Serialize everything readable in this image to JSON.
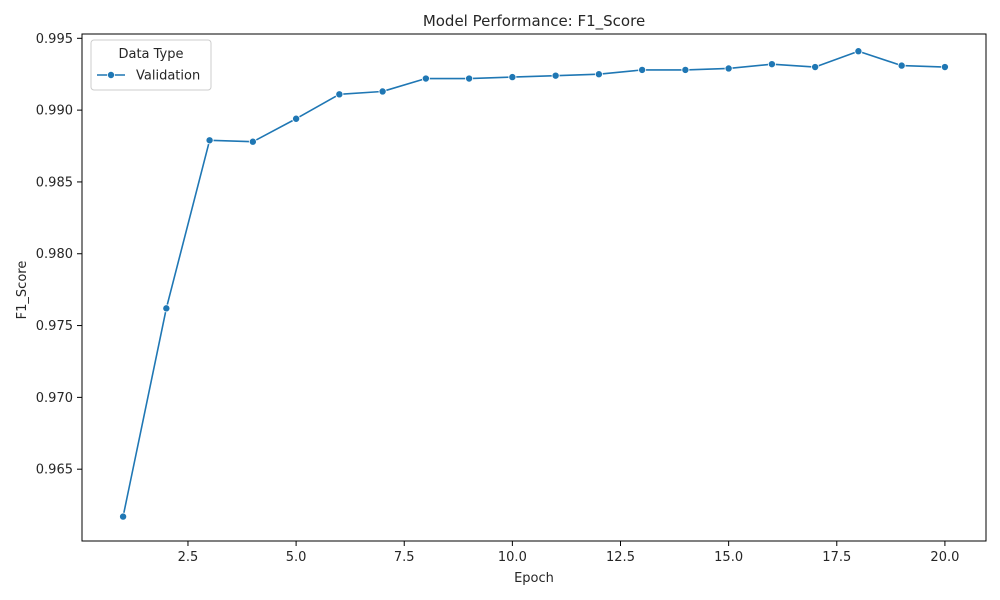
{
  "chart_data": {
    "type": "line",
    "title": "Model Performance: F1_Score",
    "xlabel": "Epoch",
    "ylabel": "F1_Score",
    "xlim": [
      0.05,
      20.95
    ],
    "ylim": [
      0.96,
      0.9953
    ],
    "xticks": [
      2.5,
      5.0,
      7.5,
      10.0,
      12.5,
      15.0,
      17.5,
      20.0
    ],
    "xtick_labels": [
      "2.5",
      "5.0",
      "7.5",
      "10.0",
      "12.5",
      "15.0",
      "17.5",
      "20.0"
    ],
    "yticks": [
      0.965,
      0.97,
      0.975,
      0.98,
      0.985,
      0.99,
      0.995
    ],
    "ytick_labels": [
      "0.965",
      "0.970",
      "0.975",
      "0.980",
      "0.985",
      "0.990",
      "0.995"
    ],
    "grid": false,
    "legend": {
      "title": "Data Type",
      "position": "top-left"
    },
    "series": [
      {
        "name": "Validation",
        "color": "#1f77b4",
        "marker": "circle",
        "x": [
          1,
          2,
          3,
          4,
          5,
          6,
          7,
          8,
          9,
          10,
          11,
          12,
          13,
          14,
          15,
          16,
          17,
          18,
          19,
          20
        ],
        "y": [
          0.9617,
          0.9762,
          0.9879,
          0.9878,
          0.9894,
          0.9911,
          0.9913,
          0.9922,
          0.9922,
          0.9923,
          0.9924,
          0.9925,
          0.9928,
          0.9928,
          0.9929,
          0.9932,
          0.993,
          0.9941,
          0.9931,
          0.993
        ]
      }
    ]
  }
}
